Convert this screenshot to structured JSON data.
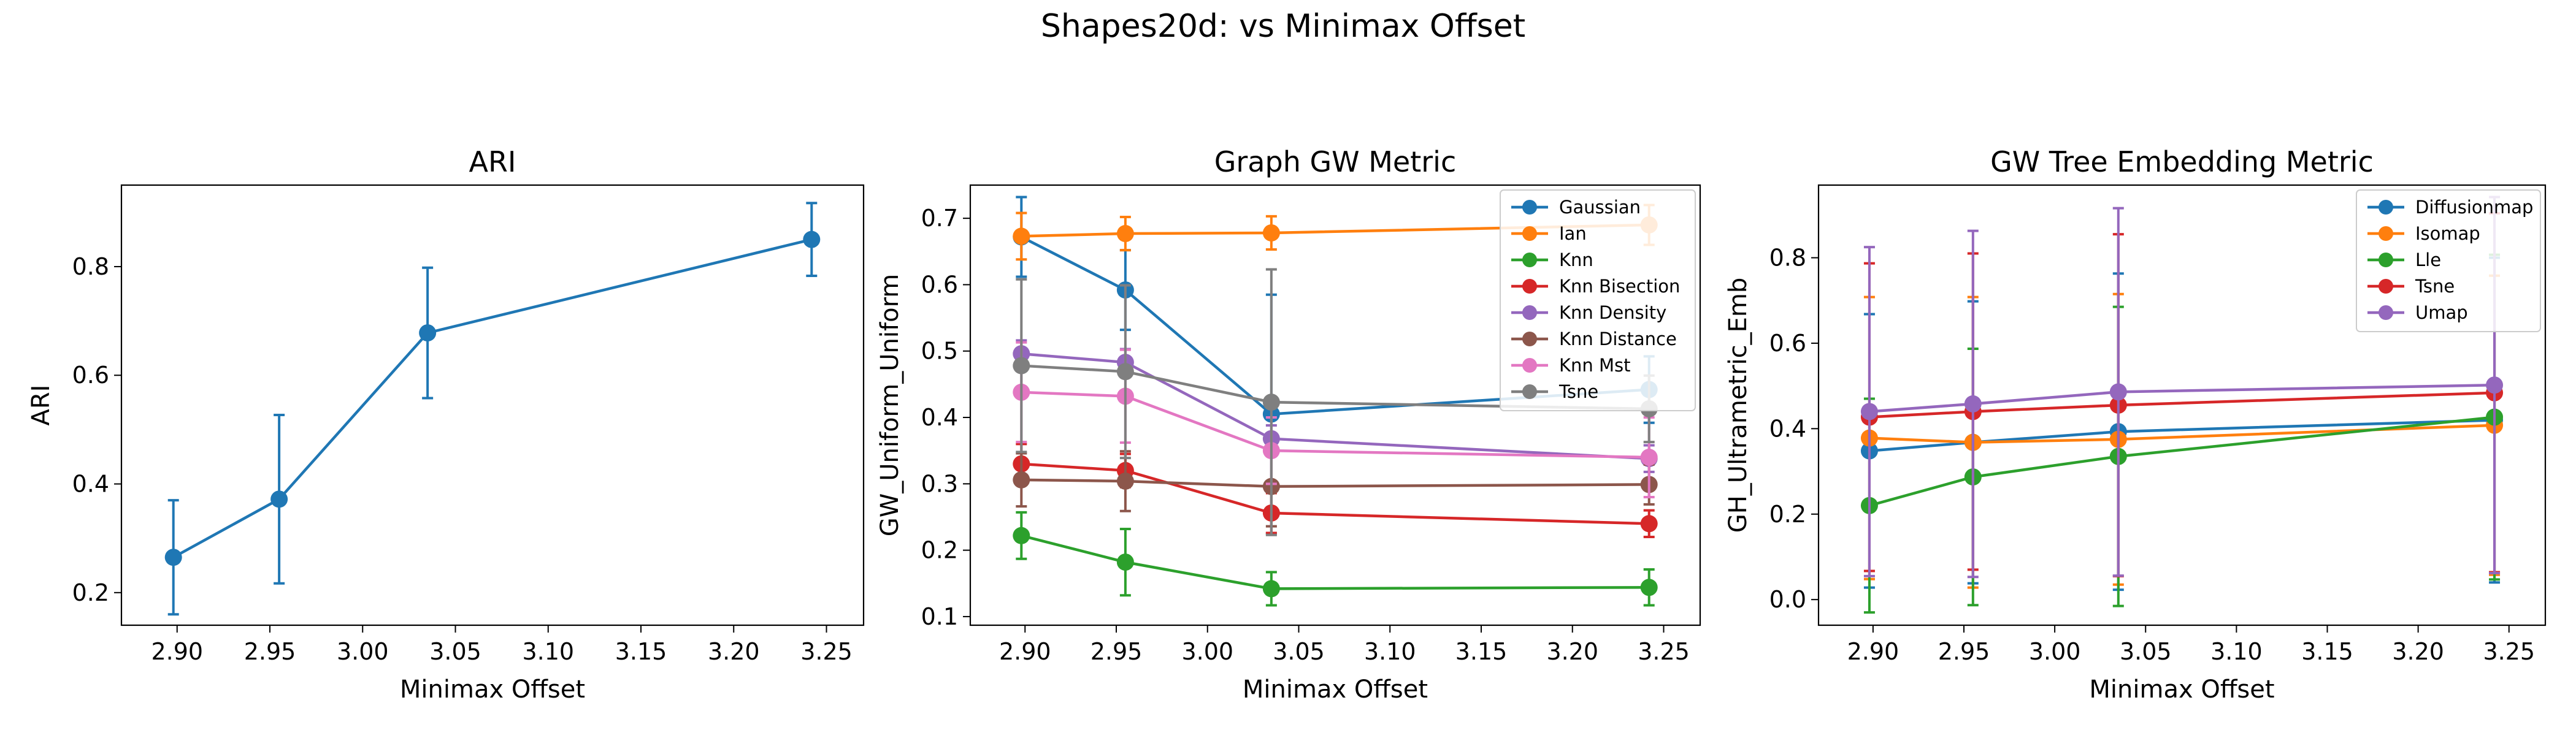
{
  "figure": {
    "title": "Shapes20d: vs Minimax Offset"
  },
  "colors": {
    "blue": "#1f77b4",
    "orange": "#ff7f0e",
    "green": "#2ca02c",
    "red": "#d62728",
    "purple": "#9467bd",
    "brown": "#8c564b",
    "pink": "#e377c2",
    "gray": "#7f7f7f"
  },
  "chart_data": [
    {
      "type": "line",
      "title": "ARI",
      "xlabel": "Minimax Offset",
      "ylabel": "ARI",
      "xlim": [
        2.87,
        3.27
      ],
      "ylim": [
        0.14,
        0.95
      ],
      "xticks": [
        2.9,
        2.95,
        3.0,
        3.05,
        3.1,
        3.15,
        3.2,
        3.25
      ],
      "yticks": [
        0.2,
        0.4,
        0.6,
        0.8
      ],
      "ytick_decimals": 1,
      "legend": null,
      "x": [
        2.898,
        2.955,
        3.035,
        3.242
      ],
      "series": [
        {
          "name": "",
          "color": "#1f77b4",
          "values": [
            0.265,
            0.372,
            0.678,
            0.85
          ],
          "err": [
            0.105,
            0.155,
            0.12,
            0.067
          ]
        }
      ]
    },
    {
      "type": "line",
      "title": "Graph GW Metric",
      "xlabel": "Minimax Offset",
      "ylabel": "GW_Uniform_Uniform",
      "xlim": [
        2.87,
        3.27
      ],
      "ylim": [
        0.087,
        0.75
      ],
      "xticks": [
        2.9,
        2.95,
        3.0,
        3.05,
        3.1,
        3.15,
        3.2,
        3.25
      ],
      "yticks": [
        0.1,
        0.2,
        0.3,
        0.4,
        0.5,
        0.6,
        0.7
      ],
      "ytick_decimals": 1,
      "legend": "top-right",
      "x": [
        2.898,
        2.955,
        3.035,
        3.242
      ],
      "series": [
        {
          "name": "Gaussian",
          "color": "#1f77b4",
          "values": [
            0.672,
            0.592,
            0.405,
            0.442
          ],
          "err": [
            0.06,
            0.06,
            0.18,
            0.05
          ]
        },
        {
          "name": "Ian",
          "color": "#ff7f0e",
          "values": [
            0.673,
            0.677,
            0.678,
            0.69
          ],
          "err": [
            0.035,
            0.025,
            0.025,
            0.03
          ]
        },
        {
          "name": "Knn",
          "color": "#2ca02c",
          "values": [
            0.222,
            0.182,
            0.142,
            0.144
          ],
          "err": [
            0.035,
            0.05,
            0.025,
            0.027
          ]
        },
        {
          "name": "Knn Bisection",
          "color": "#d62728",
          "values": [
            0.33,
            0.32,
            0.256,
            0.24
          ],
          "err": [
            0.03,
            0.025,
            0.03,
            0.02
          ]
        },
        {
          "name": "Knn Density",
          "color": "#9467bd",
          "values": [
            0.496,
            0.483,
            0.368,
            0.338
          ],
          "err": [
            0.02,
            0.02,
            0.02,
            0.02
          ]
        },
        {
          "name": "Knn Distance",
          "color": "#8c564b",
          "values": [
            0.306,
            0.304,
            0.296,
            0.299
          ],
          "err": [
            0.04,
            0.045,
            0.06,
            0.03
          ]
        },
        {
          "name": "Knn Mst",
          "color": "#e377c2",
          "values": [
            0.438,
            0.432,
            0.35,
            0.34
          ],
          "err": [
            0.075,
            0.07,
            0.05,
            0.06
          ]
        },
        {
          "name": "Tsne",
          "color": "#7f7f7f",
          "values": [
            0.478,
            0.469,
            0.423,
            0.413
          ],
          "err": [
            0.13,
            0.13,
            0.2,
            0.05
          ]
        }
      ]
    },
    {
      "type": "line",
      "title": "GW Tree Embedding Metric",
      "xlabel": "Minimax Offset",
      "ylabel": "GH_Ultrametric_Emb",
      "xlim": [
        2.87,
        3.27
      ],
      "ylim": [
        -0.06,
        0.97
      ],
      "xticks": [
        2.9,
        2.95,
        3.0,
        3.05,
        3.1,
        3.15,
        3.2,
        3.25
      ],
      "yticks": [
        0.0,
        0.2,
        0.4,
        0.6,
        0.8
      ],
      "ytick_decimals": 1,
      "legend": "top-right",
      "x": [
        2.898,
        2.955,
        3.035,
        3.242
      ],
      "series": [
        {
          "name": "Diffusionmap",
          "color": "#1f77b4",
          "values": [
            0.348,
            0.368,
            0.393,
            0.42
          ],
          "err": [
            0.32,
            0.33,
            0.37,
            0.38
          ]
        },
        {
          "name": "Isomap",
          "color": "#ff7f0e",
          "values": [
            0.378,
            0.368,
            0.375,
            0.408
          ],
          "err": [
            0.33,
            0.34,
            0.34,
            0.35
          ]
        },
        {
          "name": "Lle",
          "color": "#2ca02c",
          "values": [
            0.22,
            0.287,
            0.335,
            0.427
          ],
          "err": [
            0.25,
            0.3,
            0.35,
            0.38
          ]
        },
        {
          "name": "Tsne",
          "color": "#d62728",
          "values": [
            0.427,
            0.44,
            0.455,
            0.484
          ],
          "err": [
            0.36,
            0.37,
            0.4,
            0.42
          ]
        },
        {
          "name": "Umap",
          "color": "#9467bd",
          "values": [
            0.44,
            0.458,
            0.486,
            0.502
          ],
          "err": [
            0.385,
            0.405,
            0.43,
            0.44
          ]
        }
      ]
    }
  ]
}
